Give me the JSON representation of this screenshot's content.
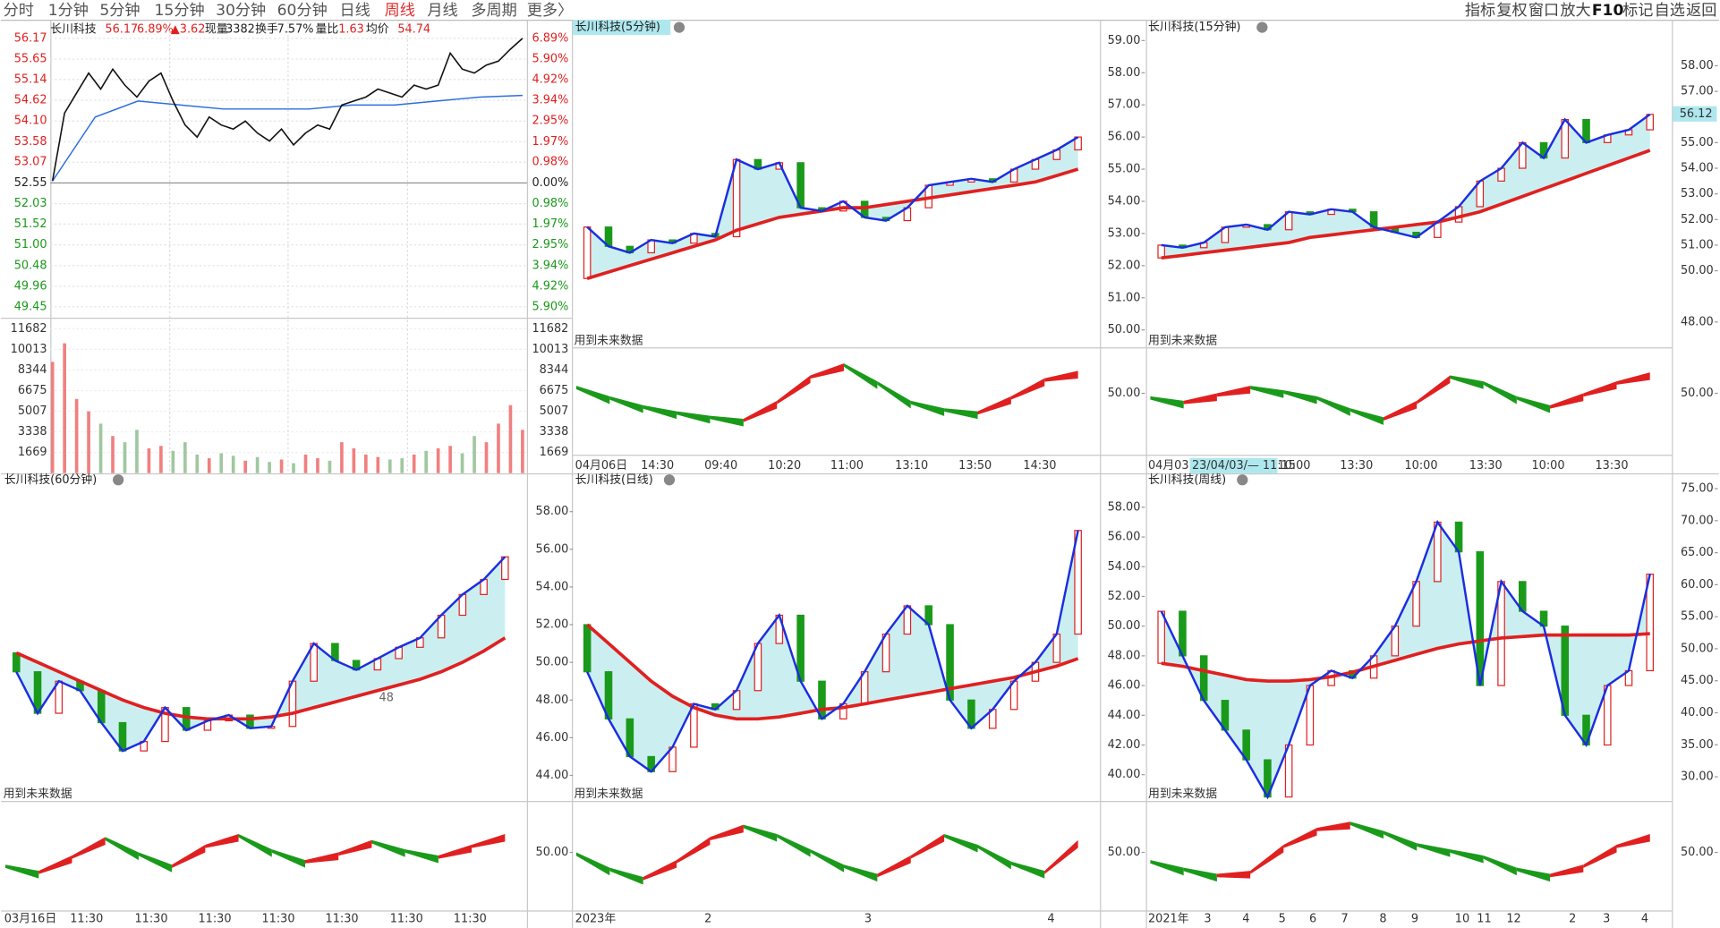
{
  "toolbar": {
    "tabs": [
      "分时",
      "1分钟",
      "5分钟",
      "15分钟",
      "30分钟",
      "60分钟",
      "日线",
      "周线",
      "月线",
      "多周期",
      "更多〉"
    ],
    "active_color": "#e03030",
    "active": 7,
    "right_menu": [
      "指标",
      "复权",
      "窗口",
      "放大",
      "F10",
      "标记",
      "自选",
      "返回"
    ]
  },
  "intraday": {
    "header": [
      {
        "text": "长川科技",
        "color": "#222"
      },
      {
        "text": "56.17",
        "color": "#e02020"
      },
      {
        "text": "6.89%",
        "color": "#e02020"
      },
      {
        "text": "▲3.62",
        "color": "#e02020"
      },
      {
        "text": "现量",
        "color": "#222"
      },
      {
        "text": "3382",
        "color": "#222"
      },
      {
        "text": "换手",
        "color": "#222"
      },
      {
        "text": "7.57%",
        "color": "#222"
      },
      {
        "text": "量比",
        "color": "#222"
      },
      {
        "text": "1.63",
        "color": "#e02020"
      },
      {
        "text": "均价",
        "color": "#222"
      },
      {
        "text": "54.74",
        "color": "#e02020"
      }
    ],
    "ylim": [
      49.45,
      56.17
    ],
    "price_ticks": [
      56.17,
      55.65,
      55.14,
      54.62,
      {
        "value": 54.1,
        "label": "54.10"
      },
      53.58,
      53.07,
      52.55,
      52.03,
      51.52,
      {
        "value": 51,
        "label": "51.00"
      },
      50.48,
      49.96,
      49.45
    ],
    "pct_labels": [
      "6.89%",
      "5.90%",
      "4.92%",
      "3.94%",
      "2.95%",
      "1.97%",
      "0.98%",
      "0.00%",
      "0.98%",
      "1.97%",
      "2.95%",
      "3.94%",
      "4.92%",
      "5.90%"
    ],
    "volume_lim": [
      0,
      11682
    ],
    "volume_ticks": [
      11682,
      10013,
      8344,
      6675,
      5007,
      3338,
      1669
    ],
    "price": [
      52.6,
      54.3,
      54.8,
      55.3,
      54.9,
      55.4,
      55.0,
      54.7,
      55.1,
      55.3,
      54.6,
      54.0,
      53.7,
      54.2,
      54.0,
      53.9,
      54.1,
      53.8,
      53.6,
      53.9,
      53.5,
      53.8,
      54.0,
      53.9,
      54.5,
      54.6,
      54.7,
      54.9,
      54.8,
      54.7,
      55.0,
      54.9,
      55.0,
      55.8,
      55.4,
      55.3,
      55.5,
      55.6,
      55.9,
      56.17
    ],
    "avg": [
      52.6,
      54.2,
      54.6,
      54.5,
      54.4,
      54.4,
      54.4,
      54.5,
      54.5,
      54.6,
      54.7,
      54.74
    ],
    "volume": [
      9000,
      10500,
      6000,
      5000,
      4000,
      3000,
      2500,
      3500,
      2000,
      2200,
      1800,
      2500,
      1500,
      1200,
      1600,
      1400,
      1000,
      1300,
      900,
      1100,
      800,
      1500,
      1200,
      1000,
      2500,
      2000,
      1500,
      1300,
      1100,
      1200,
      1500,
      1800,
      2000,
      2200,
      1600,
      3000,
      2500,
      4000,
      5500,
      3500
    ]
  },
  "future_label": "用到未来数据",
  "panels": [
    {
      "title": "长川科技(5分钟)",
      "ylim": [
        49.8,
        59.58
      ],
      "yticks": [
        {
          "value": 59,
          "label": "59.00"
        },
        {
          "value": 58,
          "label": "58.00"
        },
        {
          "value": 57,
          "label": "57.00"
        },
        {
          "value": 56,
          "label": "56.00"
        },
        {
          "value": 55,
          "label": "55.00"
        },
        {
          "value": 54,
          "label": "54.00"
        },
        {
          "value": 53,
          "label": "53.00"
        },
        {
          "value": 52,
          "label": "52.00"
        },
        {
          "value": 51,
          "label": "51.00"
        },
        {
          "value": 50,
          "label": "50.00"
        }
      ],
      "close": [
        53.2,
        52.6,
        52.4,
        52.8,
        52.7,
        53.0,
        52.9,
        55.3,
        55.0,
        55.2,
        53.8,
        53.7,
        54.0,
        53.5,
        53.4,
        53.8,
        54.5,
        54.6,
        54.7,
        54.6,
        55.0,
        55.3,
        55.6,
        56.0
      ],
      "ma": [
        51.6,
        51.8,
        52.0,
        52.2,
        52.4,
        52.6,
        52.8,
        53.1,
        53.3,
        53.5,
        53.6,
        53.7,
        53.8,
        53.8,
        53.9,
        54.0,
        54.1,
        54.2,
        54.3,
        54.4,
        54.5,
        54.6,
        54.8,
        55.0
      ],
      "osc": {
        "ylim": [
          20,
          80
        ],
        "yticks": [
          {
            "value": 50,
            "label": "50.00"
          }
        ],
        "values": [
          55,
          48,
          42,
          38,
          35,
          33,
          45,
          62,
          70,
          58,
          45,
          40,
          38,
          48,
          60,
          65
        ]
      },
      "xlabels": [
        "04月06日",
        "14:30",
        "09:40",
        "10:20",
        "11:00",
        "13:10",
        "13:50",
        "14:30"
      ]
    },
    {
      "title": "长川科技(15分钟)",
      "ylim": [
        47.44,
        59.71
      ],
      "yticks": [
        {
          "value": 58,
          "label": "58.00"
        },
        {
          "value": 57,
          "label": "57.00"
        },
        {
          "value": 55,
          "label": "55.00"
        },
        {
          "value": 54,
          "label": "54.00"
        },
        {
          "value": 53,
          "label": "53.00"
        },
        {
          "value": 52,
          "label": "52.00"
        },
        {
          "value": 51,
          "label": "51.00"
        },
        {
          "value": 50,
          "label": "50.00"
        },
        {
          "value": 48,
          "label": "48.00"
        }
      ],
      "last_price": 56.12,
      "close": [
        51.0,
        50.9,
        51.1,
        51.7,
        51.8,
        51.6,
        52.3,
        52.2,
        52.4,
        52.3,
        51.7,
        51.5,
        51.3,
        51.9,
        52.5,
        53.5,
        54.0,
        55.0,
        54.4,
        55.9,
        55.0,
        55.3,
        55.5,
        56.1
      ],
      "ma": [
        50.5,
        50.6,
        50.7,
        50.8,
        50.9,
        51.0,
        51.1,
        51.3,
        51.4,
        51.5,
        51.6,
        51.7,
        51.8,
        51.9,
        52.1,
        52.3,
        52.6,
        52.9,
        53.2,
        53.5,
        53.8,
        54.1,
        54.4,
        54.7
      ],
      "osc": {
        "ylim": [
          20,
          80
        ],
        "yticks": [
          {
            "value": 50,
            "label": "50.00"
          }
        ],
        "values": [
          48,
          45,
          50,
          55,
          52,
          48,
          40,
          34,
          45,
          62,
          58,
          48,
          42,
          50,
          58,
          64
        ]
      },
      "xlabels": [
        "04月03",
        "23/04/03/— 11:15",
        "10:00",
        "13:30",
        "10:00",
        "13:30",
        "10:00",
        "13:30"
      ]
    },
    {
      "title": "长川科技(60分钟)",
      "ylim": [
        42.88,
        59.16
      ],
      "note": "48",
      "close": [
        49.5,
        47.3,
        49.0,
        48.5,
        46.8,
        45.3,
        45.8,
        47.6,
        46.4,
        46.9,
        47.2,
        46.5,
        46.6,
        49.0,
        51.0,
        50.1,
        49.6,
        50.2,
        50.8,
        51.3,
        52.5,
        53.6,
        54.4,
        55.6
      ],
      "ma": [
        50.5,
        50.0,
        49.5,
        49.0,
        48.5,
        48.0,
        47.6,
        47.3,
        47.1,
        47.0,
        47.0,
        47.0,
        47.1,
        47.3,
        47.6,
        47.9,
        48.2,
        48.5,
        48.8,
        49.1,
        49.5,
        50.0,
        50.6,
        51.3
      ],
      "osc": {
        "ylim": [
          20,
          80
        ],
        "yticks": [
          {
            "value": 50,
            "label": "50.00"
          }
        ],
        "values": [
          42,
          38,
          48,
          60,
          50,
          42,
          55,
          62,
          52,
          45,
          50,
          58,
          52,
          48,
          55,
          62
        ]
      },
      "xlabels": [
        "03月16日",
        "11:30",
        "11:30",
        "11:30",
        "11:30",
        "11:30",
        "11:30",
        "11:30"
      ]
    },
    {
      "title": "长川科技(日线)",
      "ylim": [
        42.88,
        59.16
      ],
      "yticks": [
        {
          "value": 58,
          "label": "58.00"
        },
        {
          "value": 56,
          "label": "56.00"
        },
        {
          "value": 54,
          "label": "54.00"
        },
        {
          "value": 52,
          "label": "52.00"
        },
        {
          "value": 50,
          "label": "50.00"
        },
        {
          "value": 48,
          "label": "48.00"
        },
        {
          "value": 46,
          "label": "46.00"
        },
        {
          "value": 44,
          "label": "44.00"
        }
      ],
      "close": [
        49.5,
        47.0,
        45.0,
        44.2,
        45.5,
        47.8,
        47.5,
        48.5,
        51.0,
        52.5,
        49.0,
        47.0,
        47.8,
        49.5,
        51.5,
        53.0,
        52.0,
        48.0,
        46.5,
        47.5,
        49.0,
        50.0,
        51.5,
        57.0
      ],
      "ma": [
        52.0,
        51.0,
        50.0,
        49.0,
        48.2,
        47.6,
        47.2,
        47.0,
        47.0,
        47.1,
        47.3,
        47.5,
        47.6,
        47.8,
        48.0,
        48.2,
        48.4,
        48.6,
        48.8,
        49.0,
        49.2,
        49.5,
        49.8,
        50.2
      ],
      "osc": {
        "ylim": [
          20,
          80
        ],
        "yticks": [
          {
            "value": 50,
            "label": "50.00"
          }
        ],
        "values": [
          50,
          40,
          34,
          45,
          60,
          68,
          62,
          52,
          42,
          36,
          48,
          62,
          55,
          44,
          38,
          58
        ]
      },
      "xlabels": [
        "2023年",
        "2",
        "3",
        "4"
      ]
    },
    {
      "title": "长川科技(周线)",
      "ylim": [
        38.53,
        59.18
      ],
      "yticks": [
        {
          "value": 58,
          "label": "58.00"
        },
        {
          "value": 56,
          "label": "56.00"
        },
        {
          "value": 54,
          "label": "54.00"
        },
        {
          "value": 52,
          "label": "52.00"
        },
        {
          "value": 50,
          "label": "50.00"
        },
        {
          "value": 48,
          "label": "48.00"
        },
        {
          "value": 46,
          "label": "46.00"
        },
        {
          "value": 44,
          "label": "44.00"
        },
        {
          "value": 42,
          "label": "42.00"
        },
        {
          "value": 40,
          "label": "40.00"
        }
      ],
      "y2lim": [
        26.92,
        74.83
      ],
      "y2ticks": [
        {
          "value": 75,
          "label": "75.00"
        },
        {
          "value": 70,
          "label": "70.00"
        },
        {
          "value": 65,
          "label": "65.00"
        },
        {
          "value": 60,
          "label": "60.00"
        },
        {
          "value": 55,
          "label": "55.00"
        },
        {
          "value": 50,
          "label": "50.00"
        },
        {
          "value": 45,
          "label": "45.00"
        },
        {
          "value": 40,
          "label": "40.00"
        },
        {
          "value": 35,
          "label": "35.00"
        },
        {
          "value": 30,
          "label": "30.00"
        }
      ],
      "close": [
        51,
        48,
        45,
        43,
        41,
        38.5,
        42,
        46,
        47,
        46.5,
        48,
        50,
        53,
        57,
        55,
        46,
        53,
        51,
        50,
        44,
        42,
        46,
        47,
        53.5
      ],
      "ma": [
        47.5,
        47.3,
        47.0,
        46.7,
        46.4,
        46.3,
        46.3,
        46.4,
        46.6,
        46.9,
        47.3,
        47.7,
        48.1,
        48.5,
        48.8,
        49.0,
        49.2,
        49.3,
        49.4,
        49.4,
        49.4,
        49.4,
        49.4,
        49.5
      ],
      "osc": {
        "ylim": [
          20,
          80
        ],
        "yticks": [
          {
            "value": 50,
            "label": "50.00"
          }
        ],
        "values": [
          45,
          40,
          36,
          38,
          55,
          66,
          70,
          64,
          56,
          52,
          48,
          40,
          36,
          42,
          55,
          62
        ]
      },
      "xlabels": [
        "2021年",
        "3",
        "4",
        "5",
        "6",
        "7",
        "8",
        "9",
        "10",
        "11",
        "12",
        "2",
        "3",
        "4"
      ]
    }
  ]
}
